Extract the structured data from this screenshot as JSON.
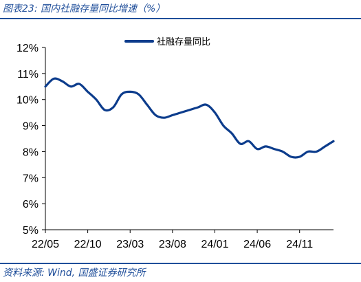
{
  "figure": {
    "title": "图表23:  国内社融存量同比增速（%）",
    "source": "资料来源:  Wind, 国盛证券研究所"
  },
  "chart_data": {
    "type": "line",
    "title": "",
    "xlabel": "",
    "ylabel": "",
    "ylim": [
      5,
      12
    ],
    "yticks": [
      5,
      6,
      7,
      8,
      9,
      10,
      11,
      12
    ],
    "ytick_labels": [
      "5%",
      "6%",
      "7%",
      "8%",
      "9%",
      "10%",
      "11%",
      "12%"
    ],
    "x_ticks": [
      {
        "index": 0,
        "label": "22/05"
      },
      {
        "index": 5,
        "label": "22/10"
      },
      {
        "index": 10,
        "label": "23/03"
      },
      {
        "index": 15,
        "label": "23/08"
      },
      {
        "index": 20,
        "label": "24/01"
      },
      {
        "index": 25,
        "label": "24/06"
      },
      {
        "index": 30,
        "label": "24/11"
      }
    ],
    "x": [
      "22/05",
      "22/06",
      "22/07",
      "22/08",
      "22/09",
      "22/10",
      "22/11",
      "22/12",
      "23/01",
      "23/02",
      "23/03",
      "23/04",
      "23/05",
      "23/06",
      "23/07",
      "23/08",
      "23/09",
      "23/10",
      "23/11",
      "23/12",
      "24/01",
      "24/02",
      "24/03",
      "24/04",
      "24/05",
      "24/06",
      "24/07",
      "24/08",
      "24/09",
      "24/10",
      "24/11",
      "24/12",
      "25/01",
      "25/02",
      "25/03"
    ],
    "legend_position": "top",
    "grid": false,
    "series": [
      {
        "name": "社融存量同比",
        "color": "#0c3c8c",
        "values": [
          10.5,
          10.8,
          10.7,
          10.5,
          10.6,
          10.3,
          10.0,
          9.6,
          9.7,
          10.2,
          10.3,
          10.2,
          9.8,
          9.4,
          9.3,
          9.4,
          9.5,
          9.6,
          9.7,
          9.8,
          9.5,
          9.0,
          8.7,
          8.3,
          8.4,
          8.1,
          8.2,
          8.1,
          8.0,
          7.8,
          7.8,
          8.0,
          8.0,
          8.2,
          8.4
        ]
      }
    ]
  }
}
